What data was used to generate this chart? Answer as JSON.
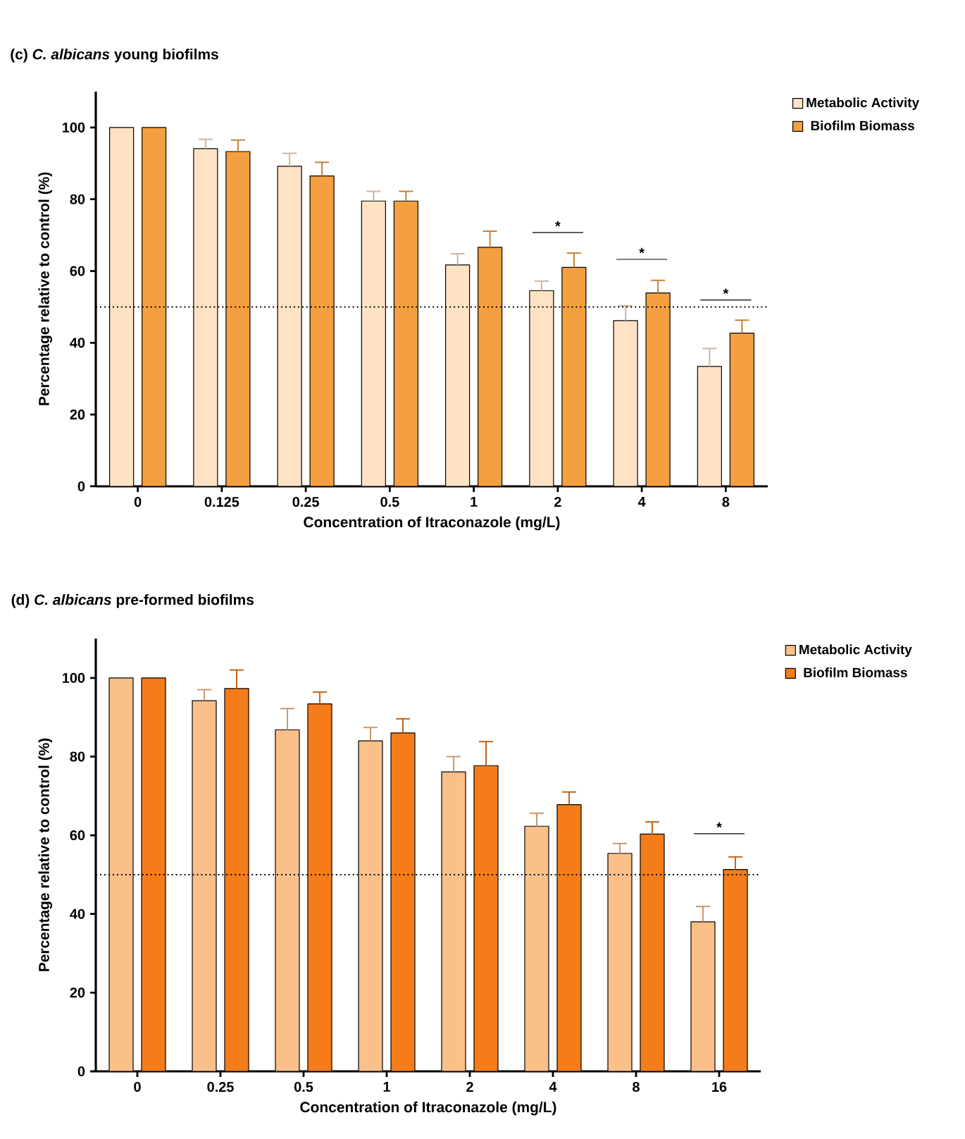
{
  "chart_data": [
    {
      "type": "bar",
      "title": "(c) *C. albicans* young biofilms",
      "xlabel": "Concentration of Itraconazole (mg/L)",
      "ylabel": "Percentage relative to control (%)",
      "categories": [
        "0",
        "0.125",
        "0.25",
        "0.5",
        "1",
        "2",
        "4",
        "8"
      ],
      "series": [
        {
          "name": "Metabolic Activity",
          "color": "#fde3c4",
          "values": [
            100,
            94.1,
            89.2,
            79.5,
            61.7,
            54.5,
            46.2,
            33.4
          ],
          "errors": [
            null,
            [
              94.1,
              96.7
            ],
            [
              89.2,
              92.8
            ],
            [
              79.5,
              82.2
            ],
            [
              61.7,
              64.8
            ],
            [
              54.5,
              57.2
            ],
            [
              46.2,
              50.3
            ],
            [
              33.4,
              38.4
            ]
          ]
        },
        {
          "name": "Biofilm Biomass",
          "color": "#f5a040",
          "values": [
            100,
            93.3,
            86.5,
            79.5,
            66.6,
            61,
            53.9,
            42.7
          ],
          "errors": [
            null,
            [
              93.3,
              96.5
            ],
            [
              86.5,
              90.3
            ],
            [
              79.5,
              82.2
            ],
            [
              66.6,
              71.1
            ],
            [
              61,
              65
            ],
            [
              53.9,
              57.4
            ],
            [
              42.7,
              46.3
            ]
          ]
        }
      ],
      "ylim": [
        0,
        110
      ],
      "yticks": [
        0,
        20,
        40,
        60,
        80,
        100
      ],
      "legend": "top right",
      "ref_lines": [
        {
          "axis": "y",
          "value": 50,
          "line_style": "dotted"
        }
      ],
      "annotations": [
        "*",
        "*",
        "*"
      ]
    },
    {
      "type": "bar",
      "title": "(d) *C. albicans* pre-formed biofilms",
      "xlabel": "Concentration of Itraconazole (mg/L)",
      "ylabel": "Percentage relative to control (%)",
      "categories": [
        "0",
        "0.25",
        "0.5",
        "1",
        "2",
        "4",
        "8",
        "16"
      ],
      "series": [
        {
          "name": "Metabolic Activity",
          "color": "#fbbf8a",
          "values": [
            100,
            94.2,
            86.8,
            84,
            76.1,
            62.3,
            55.4,
            38
          ],
          "errors": [
            null,
            [
              94.2,
              97
            ],
            [
              86.8,
              92.2
            ],
            [
              84,
              87.4
            ],
            [
              76.1,
              80
            ],
            [
              62.3,
              65.6
            ],
            [
              55.4,
              57.9
            ],
            [
              38,
              41.9
            ]
          ]
        },
        {
          "name": "Biofilm Biomass",
          "color": "#f57c1a",
          "values": [
            100,
            97.3,
            93.4,
            86,
            77.7,
            67.8,
            60.3,
            51.3
          ],
          "errors": [
            null,
            [
              97.3,
              102
            ],
            [
              93.4,
              96.4
            ],
            [
              86,
              89.6
            ],
            [
              77.7,
              83.8
            ],
            [
              67.8,
              71
            ],
            [
              60.3,
              63.4
            ],
            [
              51.3,
              54.5
            ]
          ]
        }
      ],
      "ylim": [
        0,
        110
      ],
      "yticks": [
        0,
        20,
        40,
        60,
        80,
        100
      ],
      "legend": "top right",
      "ref_lines": [
        {
          "axis": "y",
          "value": 50,
          "line_style": "dotted"
        }
      ],
      "annotations": [
        "*"
      ]
    }
  ]
}
